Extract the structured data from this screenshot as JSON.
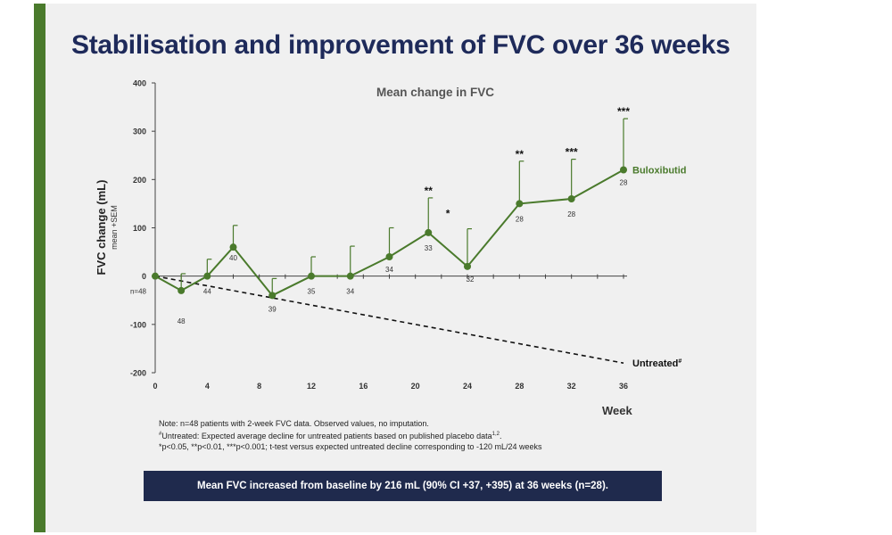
{
  "title": "Stabilisation and improvement of FVC over 36 weeks",
  "notes": {
    "line1": "Note: n=48 patients with 2-week FVC data. Observed values, no imputation.",
    "line2_mark": "#",
    "line2": "Untreated: Expected average decline for untreated patients based on published placebo data",
    "line2_ref": "1,2",
    "line3": "*p<0.05, **p<0.01, ***p<0.001; t-test versus expected untreated decline corresponding to -120 mL/24 weeks"
  },
  "summary": "Mean FVC increased from baseline by 216 mL (90% CI +37, +395) at 36 weeks (n=28).",
  "colors": {
    "accent": "#4a7a2c",
    "title": "#1e2a5a",
    "series": "#4a7a2c",
    "summary_bg": "#1f2a4d",
    "panel_bg": "#f0f0f0"
  },
  "chart_data": {
    "type": "line",
    "title": "Mean change in FVC",
    "xlabel": "Week",
    "ylabel": "FVC change (mL)",
    "ylabel_sub": "mean +SEM",
    "xlim": [
      0,
      36
    ],
    "ylim": [
      -200,
      400
    ],
    "x_ticks": [
      0,
      4,
      8,
      12,
      16,
      20,
      24,
      28,
      32,
      36
    ],
    "y_ticks": [
      -200,
      -100,
      0,
      100,
      200,
      300,
      400
    ],
    "grid": false,
    "series": [
      {
        "name": "Buloxibutid",
        "x": [
          0,
          2,
          4,
          6,
          9,
          12,
          15,
          18,
          21,
          24,
          28,
          32,
          36
        ],
        "y": [
          0,
          -30,
          0,
          60,
          -40,
          0,
          0,
          40,
          90,
          20,
          150,
          160,
          220
        ],
        "sem_upper": [
          0,
          5,
          35,
          105,
          -5,
          40,
          62,
          100,
          162,
          98,
          238,
          242,
          326
        ],
        "n_labels": [
          "n=48",
          "48",
          "44",
          "40",
          "39",
          "35",
          "34",
          "34",
          "33",
          "32",
          "28",
          "28",
          "28"
        ],
        "significance": [
          "",
          "",
          "",
          "",
          "",
          "",
          "",
          "",
          "**",
          "",
          "**",
          "***",
          "***"
        ]
      },
      {
        "name": "Untreated",
        "name_sup": "#",
        "style": "dashed",
        "x": [
          0,
          36
        ],
        "y": [
          0,
          -180
        ]
      }
    ],
    "annotations": [
      {
        "text": "*",
        "x": 22.5,
        "y": 130
      }
    ]
  }
}
